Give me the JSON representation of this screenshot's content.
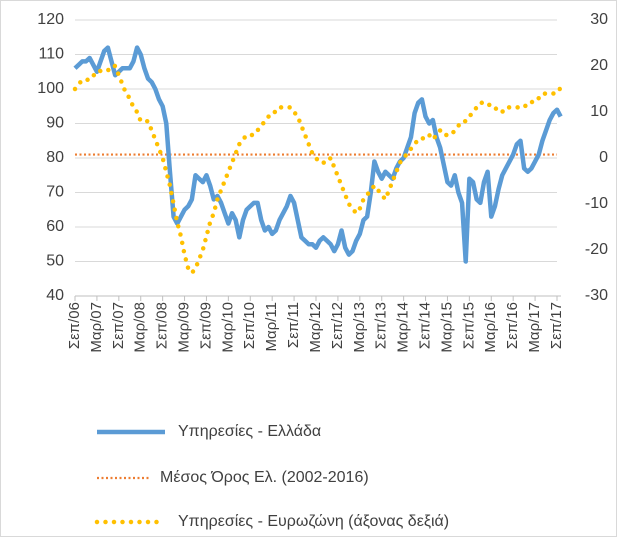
{
  "chart_data": {
    "type": "line",
    "categories": [
      "Σεπ/06",
      null,
      null,
      null,
      null,
      null,
      "Μαρ/07",
      null,
      null,
      null,
      null,
      null,
      "Σεπ/07",
      null,
      null,
      null,
      null,
      null,
      "Μαρ/08",
      null,
      null,
      null,
      null,
      null,
      "Σεπ/08",
      null,
      null,
      null,
      null,
      null,
      "Μαρ/09",
      null,
      null,
      null,
      null,
      null,
      "Σεπ/09",
      null,
      null,
      null,
      null,
      null,
      "Μαρ/10",
      null,
      null,
      null,
      null,
      null,
      "Σεπ/10",
      null,
      null,
      null,
      null,
      null,
      "Μαρ/11",
      null,
      null,
      null,
      null,
      null,
      "Σεπ/11",
      null,
      null,
      null,
      null,
      null,
      "Μαρ/12",
      null,
      null,
      null,
      null,
      null,
      "Σεπ/12",
      null,
      null,
      null,
      null,
      null,
      "Μαρ/13",
      null,
      null,
      null,
      null,
      null,
      "Σεπ/13",
      null,
      null,
      null,
      null,
      null,
      "Μαρ/14",
      null,
      null,
      null,
      null,
      null,
      "Σεπ/14",
      null,
      null,
      null,
      null,
      null,
      "Μαρ/15",
      null,
      null,
      null,
      null,
      null,
      "Σεπ/15",
      null,
      null,
      null,
      null,
      null,
      "Μαρ/16",
      null,
      null,
      null,
      null,
      null,
      "Σεπ/16",
      null,
      null,
      null,
      null,
      null,
      "Μαρ/17",
      null,
      null,
      null,
      null,
      null,
      "Σεπ/17",
      null
    ],
    "series": [
      {
        "name": "Υπηρεσίες  - Ελλάδα",
        "color": "#5b9bd5",
        "style": "solid",
        "values": [
          106,
          107,
          108,
          108,
          109,
          107,
          105,
          108,
          111,
          112,
          108,
          104,
          105,
          106,
          106,
          106,
          108,
          112,
          110,
          106,
          103,
          102,
          100,
          97,
          95,
          90,
          76,
          63,
          61,
          63,
          65,
          66,
          68,
          75,
          74,
          73,
          75,
          72,
          68,
          69,
          67,
          64,
          61,
          64,
          62,
          57,
          62,
          65,
          66,
          67,
          67,
          62,
          59,
          60,
          58,
          59,
          62,
          64,
          66,
          69,
          67,
          62,
          57,
          56,
          55,
          55,
          54,
          56,
          57,
          56,
          55,
          53,
          55,
          59,
          54,
          52,
          53,
          56,
          58,
          62,
          63,
          70,
          79,
          76,
          74,
          76,
          75,
          74,
          77,
          79,
          80,
          83,
          86,
          93,
          96,
          97,
          92,
          90,
          91,
          86,
          83,
          78,
          73,
          72,
          75,
          70,
          67,
          50,
          74,
          73,
          68,
          67,
          73,
          76,
          63,
          66,
          71,
          75,
          77,
          79,
          81,
          84,
          85,
          77,
          76,
          77,
          79,
          81,
          85,
          88,
          91,
          93,
          94,
          92
        ]
      },
      {
        "name": "Υπηρεσίες - Ευρωζώνη (άξονας δεξιά)",
        "color": "#ffc000",
        "style": "dots",
        "axis": "y2",
        "values": [
          15,
          16,
          17,
          17,
          17,
          18,
          18,
          19,
          19,
          19,
          20,
          20,
          18,
          16,
          14,
          13,
          11,
          10,
          8,
          8,
          8,
          6,
          4,
          2,
          0,
          -3,
          -6,
          -10,
          -14,
          -17,
          -21,
          -24,
          -25,
          -24,
          -22,
          -20,
          -17,
          -14,
          -12,
          -9,
          -7,
          -5,
          -3,
          -1,
          1,
          3,
          4,
          5,
          5,
          5,
          6,
          7,
          8,
          9,
          10,
          10,
          11,
          11,
          11,
          11,
          10,
          9,
          7,
          5,
          3,
          1,
          0,
          -1,
          -1,
          -1,
          0,
          -2,
          -4,
          -6,
          -8,
          -10,
          -11,
          -12,
          -11,
          -9,
          -8,
          -7,
          -6,
          -7,
          -8,
          -9,
          -7,
          -5,
          -3,
          -1,
          0,
          1,
          2,
          3,
          4,
          4,
          5,
          5,
          4,
          5,
          6,
          5,
          5,
          5,
          6,
          7,
          8,
          8,
          9,
          10,
          11,
          12,
          12,
          12,
          11,
          11,
          10,
          10,
          11,
          11,
          11,
          11,
          11,
          11,
          12,
          12,
          13,
          13,
          14,
          14,
          14,
          14,
          15,
          15
        ]
      }
    ],
    "reference_line": {
      "name": "Μέσος Όρος Ελ. (2002-2016)",
      "value": 81,
      "color": "#ed7d31"
    },
    "ylim": [
      40,
      120
    ],
    "yticks": [
      40,
      50,
      60,
      70,
      80,
      90,
      100,
      110,
      120
    ],
    "y2lim": [
      -30,
      30
    ],
    "y2ticks": [
      -30,
      -20,
      -10,
      0,
      10,
      20,
      30
    ],
    "grid": true
  }
}
